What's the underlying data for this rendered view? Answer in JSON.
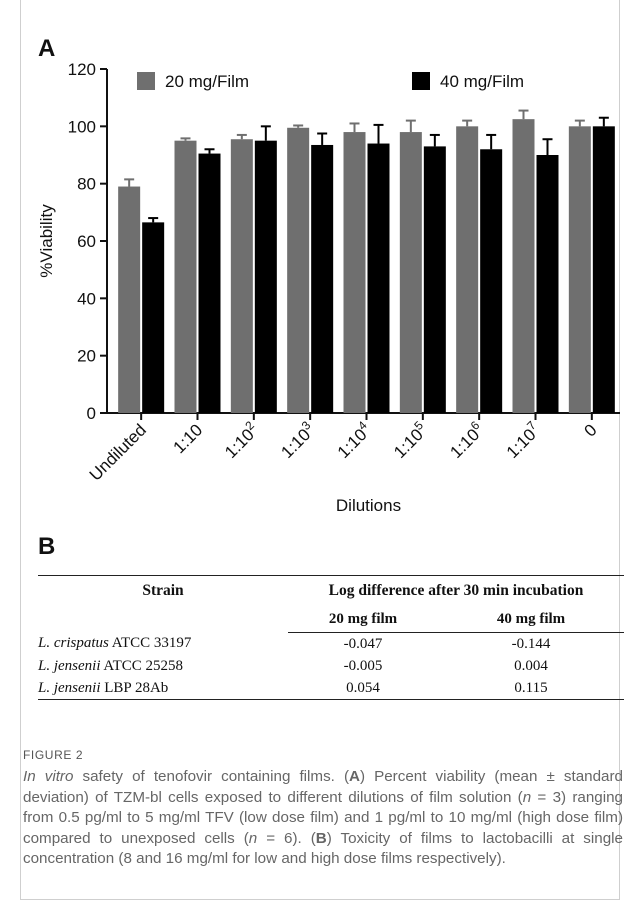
{
  "panel_a_label": "A",
  "panel_b_label": "B",
  "chart_data": {
    "type": "bar",
    "categories": [
      "Undiluted",
      "1:10",
      "1:10^2",
      "1:10^3",
      "1:10^4",
      "1:10^5",
      "1:10^6",
      "1:10^7",
      "0"
    ],
    "category_labels": [
      {
        "base": "Undiluted",
        "sup": ""
      },
      {
        "base": "1:10",
        "sup": ""
      },
      {
        "base": "1:10",
        "sup": "2"
      },
      {
        "base": "1:10",
        "sup": "3"
      },
      {
        "base": "1:10",
        "sup": "4"
      },
      {
        "base": "1:10",
        "sup": "5"
      },
      {
        "base": "1:10",
        "sup": "6"
      },
      {
        "base": "1:10",
        "sup": "7"
      },
      {
        "base": "0",
        "sup": ""
      }
    ],
    "series": [
      {
        "name": "20 mg/Film",
        "color": "#6f6f6f",
        "values": [
          79,
          95,
          95.5,
          99.5,
          98,
          98,
          100,
          102.5,
          100
        ],
        "errors": [
          2.5,
          0.8,
          1.5,
          0.8,
          3,
          4,
          2,
          3,
          2
        ]
      },
      {
        "name": "40 mg/Film",
        "color": "#000000",
        "values": [
          66.5,
          90.5,
          95,
          93.5,
          94,
          93,
          92,
          90,
          100
        ],
        "errors": [
          1.5,
          1.5,
          5,
          4,
          6.5,
          4,
          5,
          5.5,
          3
        ]
      }
    ],
    "xlabel": "Dilutions",
    "ylabel": "%Viability",
    "ylim": [
      0,
      120
    ],
    "yticks": [
      0,
      20,
      40,
      60,
      80,
      100,
      120
    ],
    "grid": false,
    "legend_position": "top"
  },
  "table": {
    "header_strain": "Strain",
    "header_log": "Log difference after 30 min incubation",
    "sub_20": "20 mg film",
    "sub_40": "40 mg film",
    "rows": [
      {
        "species": "L. crispatus",
        "strain": " ATCC 33197",
        "v20": "-0.047",
        "v40": "-0.144"
      },
      {
        "species": "L. jensenii",
        "strain": " ATCC 25258",
        "v20": "-0.005",
        "v40": "0.004"
      },
      {
        "species": "L. jensenii",
        "strain": " LBP 28Ab",
        "v20": "0.054",
        "v40": "0.115"
      }
    ]
  },
  "caption": {
    "figure_label": "FIGURE 2",
    "p1": "In vitro",
    "p2": " safety of tenofovir containing films. (",
    "p3": "A",
    "p4": ") Percent viability (mean ± standard deviation) of TZM-bl cells exposed to different dilutions of film solution (",
    "p5": "n",
    "p6": " = 3) ranging from 0.5 pg/ml to 5 mg/ml TFV (low dose film) and 1 pg/ml to 10 mg/ml (high dose film) compared to unexposed cells (",
    "p7": "n",
    "p8": " = 6). (",
    "p9": "B",
    "p10": ") Toxicity of films to lactobacilli at single concentration (8 and 16 mg/ml for low and high dose films respectively)."
  }
}
